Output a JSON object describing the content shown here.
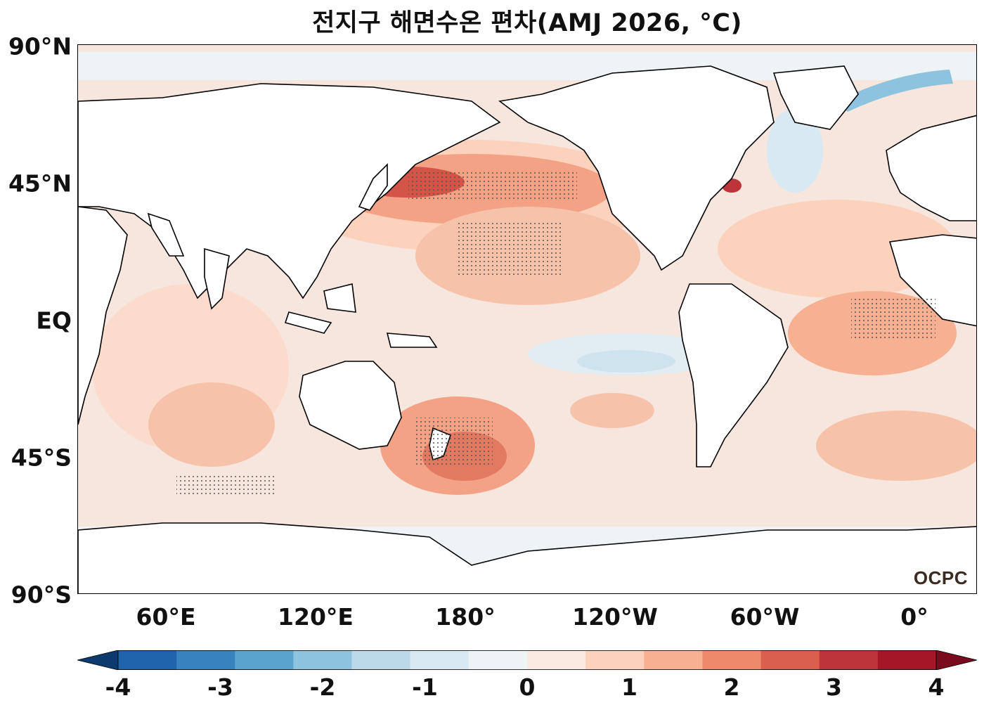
{
  "title": "전지구 해면수온 편차(AMJ 2026, °C)",
  "map": {
    "projection": "equirectangular",
    "central_longitude": "Pacific-centered",
    "background_land": "#ffffff",
    "coastline_color": "#000000"
  },
  "lat_labels": [
    "90°N",
    "45°N",
    "EQ",
    "45°S",
    "90°S"
  ],
  "lon_labels": [
    "60°E",
    "120°E",
    "180°",
    "120°W",
    "60°W",
    "0°"
  ],
  "colorbar": {
    "ticks": [
      "-4",
      "-3",
      "-2",
      "-1",
      "0",
      "1",
      "2",
      "3",
      "4"
    ],
    "colors": [
      "#0d3a6e",
      "#1f63aa",
      "#3882bf",
      "#5aa3cf",
      "#8ec3df",
      "#bcd9ea",
      "#d9e9f2",
      "#eef3f5",
      "#fbeae0",
      "#fcd2bd",
      "#f7b091",
      "#ee8a6c",
      "#da5f4e",
      "#be343b",
      "#a51629",
      "#7a0a1e"
    ],
    "extend": "both"
  },
  "logo": "OCPC"
}
